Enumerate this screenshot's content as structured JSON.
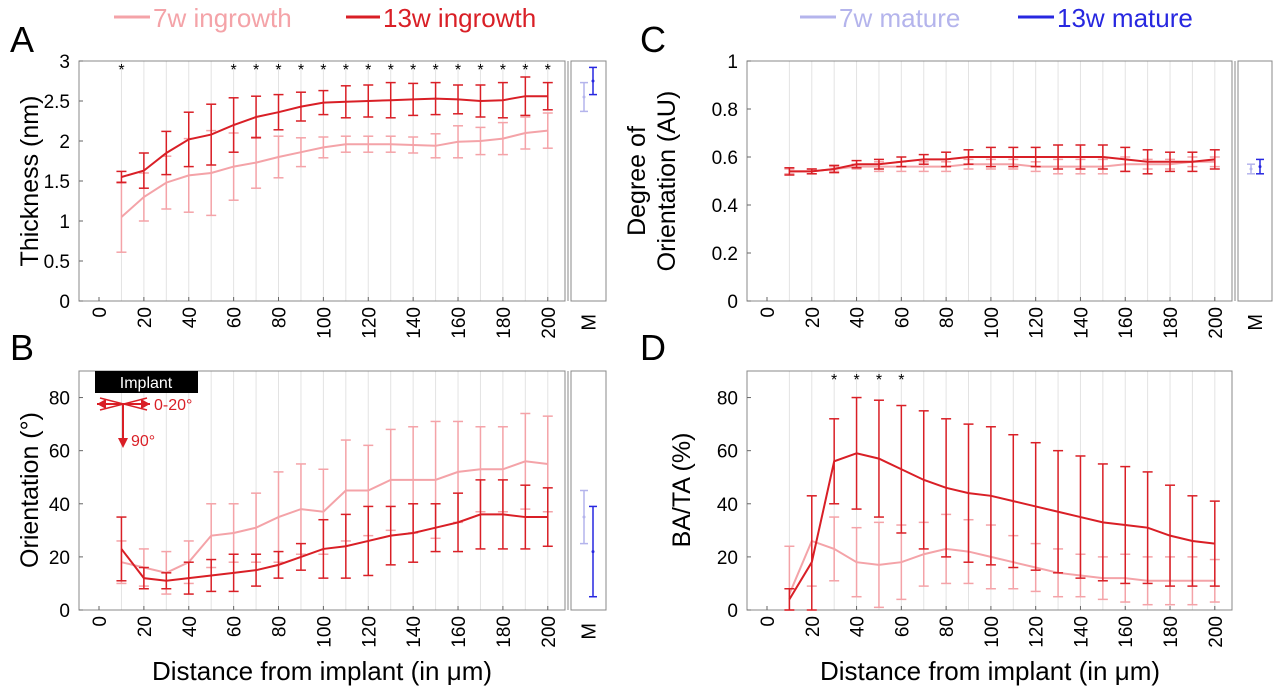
{
  "legend_left": {
    "items": [
      {
        "label": "7w ingrowth",
        "color": "#f4a3a8"
      },
      {
        "label": "13w ingrowth",
        "color": "#d91f26"
      }
    ]
  },
  "legend_right": {
    "items": [
      {
        "label": "7w mature",
        "color": "#b4b4ec"
      },
      {
        "label": "13w mature",
        "color": "#2727e0"
      }
    ]
  },
  "xlabel": "Distance from implant (in μm)",
  "colors": {
    "ingrowth7": "#f4a3a8",
    "ingrowth13": "#d91f26",
    "mature7": "#b4b4ec",
    "mature13": "#2727e0",
    "grid": "#e3e3e3",
    "star": "#000000"
  },
  "chart_data": [
    {
      "panel": "A",
      "type": "line",
      "ylabel": [
        "Thickness (nm)"
      ],
      "ylim": [
        0,
        3
      ],
      "yticks": [
        0,
        0.5,
        1,
        1.5,
        2,
        2.5,
        3
      ],
      "xticks": [
        0,
        20,
        40,
        60,
        80,
        100,
        120,
        140,
        160,
        180,
        200
      ],
      "x": [
        10,
        20,
        30,
        40,
        50,
        60,
        70,
        80,
        90,
        100,
        110,
        120,
        130,
        140,
        150,
        160,
        170,
        180,
        190,
        200
      ],
      "series": [
        {
          "name": "7w ingrowth",
          "values": [
            1.05,
            1.3,
            1.48,
            1.57,
            1.6,
            1.68,
            1.73,
            1.8,
            1.86,
            1.92,
            1.96,
            1.96,
            1.96,
            1.95,
            1.94,
            1.99,
            2.0,
            2.03,
            2.1,
            2.13
          ],
          "errors": [
            0.44,
            0.3,
            0.33,
            0.46,
            0.53,
            0.42,
            0.32,
            0.26,
            0.18,
            0.13,
            0.1,
            0.1,
            0.1,
            0.1,
            0.15,
            0.2,
            0.17,
            0.2,
            0.2,
            0.22
          ]
        },
        {
          "name": "13w ingrowth",
          "values": [
            1.55,
            1.63,
            1.85,
            2.02,
            2.08,
            2.2,
            2.3,
            2.36,
            2.43,
            2.48,
            2.49,
            2.5,
            2.51,
            2.52,
            2.53,
            2.52,
            2.5,
            2.51,
            2.56,
            2.56
          ],
          "errors": [
            0.07,
            0.22,
            0.27,
            0.34,
            0.38,
            0.34,
            0.26,
            0.22,
            0.18,
            0.15,
            0.2,
            0.2,
            0.22,
            0.2,
            0.2,
            0.18,
            0.2,
            0.22,
            0.24,
            0.17
          ]
        }
      ],
      "mature": [
        {
          "name": "7w mature",
          "value": 2.55,
          "error": 0.18
        },
        {
          "name": "13w mature",
          "value": 2.75,
          "error": 0.17
        }
      ],
      "stars_at": [
        10,
        60,
        70,
        80,
        90,
        100,
        110,
        120,
        130,
        140,
        150,
        160,
        170,
        180,
        190,
        200
      ],
      "m_label": "M"
    },
    {
      "panel": "B",
      "type": "line",
      "ylabel": [
        "Orientation (°)"
      ],
      "ylim": [
        0,
        90
      ],
      "yticks": [
        0,
        20,
        40,
        60,
        80
      ],
      "xticks": [
        0,
        20,
        40,
        60,
        80,
        100,
        120,
        140,
        160,
        180,
        200
      ],
      "x": [
        10,
        20,
        30,
        40,
        50,
        60,
        70,
        80,
        90,
        100,
        110,
        120,
        130,
        140,
        150,
        160,
        170,
        180,
        190,
        200
      ],
      "series": [
        {
          "name": "7w ingrowth",
          "values": [
            18,
            16,
            14,
            18,
            28,
            29,
            31,
            35,
            38,
            37,
            45,
            45,
            49,
            49,
            49,
            52,
            53,
            53,
            56,
            55
          ],
          "errors": [
            8,
            7,
            8,
            8,
            12,
            11,
            13,
            17,
            17,
            16,
            19,
            17,
            19,
            20,
            22,
            19,
            16,
            16,
            18,
            18
          ]
        },
        {
          "name": "13w ingrowth",
          "values": [
            23,
            12,
            11,
            12,
            13,
            14,
            15,
            17,
            20,
            23,
            24,
            26,
            28,
            29,
            31,
            33,
            36,
            36,
            35,
            35
          ],
          "errors": [
            12,
            4,
            3,
            6,
            6,
            7,
            6,
            5,
            5,
            11,
            12,
            13,
            11,
            11,
            9,
            11,
            13,
            13,
            12,
            11
          ]
        }
      ],
      "mature": [
        {
          "name": "7w mature",
          "value": 35,
          "error": 10
        },
        {
          "name": "13w mature",
          "value": 22,
          "error": 17
        }
      ],
      "stars_at": [],
      "m_label": "M",
      "inset": {
        "implant_label": "Implant",
        "range_label": "0-20°",
        "perp_label": "90°"
      }
    },
    {
      "panel": "C",
      "type": "line",
      "ylabel": [
        "Degree of",
        "Orientation (AU)"
      ],
      "ylim": [
        0,
        1
      ],
      "yticks": [
        0,
        0.2,
        0.4,
        0.6,
        0.8,
        1
      ],
      "xticks": [
        0,
        20,
        40,
        60,
        80,
        100,
        120,
        140,
        160,
        180,
        200
      ],
      "x": [
        10,
        20,
        30,
        40,
        50,
        60,
        70,
        80,
        90,
        100,
        110,
        120,
        130,
        140,
        150,
        160,
        170,
        180,
        190,
        200
      ],
      "series": [
        {
          "name": "7w mature",
          "values": [
            0.54,
            0.54,
            0.55,
            0.56,
            0.56,
            0.56,
            0.56,
            0.56,
            0.57,
            0.57,
            0.57,
            0.56,
            0.56,
            0.56,
            0.56,
            0.57,
            0.57,
            0.57,
            0.58,
            0.58
          ],
          "errors": [
            0.01,
            0.01,
            0.01,
            0.01,
            0.02,
            0.02,
            0.02,
            0.02,
            0.02,
            0.02,
            0.02,
            0.02,
            0.03,
            0.03,
            0.03,
            0.03,
            0.02,
            0.02,
            0.02,
            0.02
          ]
        },
        {
          "name": "13w mature",
          "values": [
            0.54,
            0.54,
            0.55,
            0.57,
            0.57,
            0.58,
            0.59,
            0.59,
            0.6,
            0.6,
            0.6,
            0.6,
            0.6,
            0.6,
            0.6,
            0.59,
            0.58,
            0.58,
            0.58,
            0.59
          ],
          "errors": [
            0.015,
            0.01,
            0.015,
            0.015,
            0.02,
            0.02,
            0.02,
            0.03,
            0.03,
            0.04,
            0.04,
            0.04,
            0.05,
            0.05,
            0.05,
            0.05,
            0.05,
            0.04,
            0.04,
            0.04
          ]
        }
      ],
      "series_colors": [
        "#f4a3a8",
        "#d91f26"
      ],
      "mature": [
        {
          "name": "7w mature",
          "value": 0.55,
          "error": 0.02
        },
        {
          "name": "13w mature",
          "value": 0.56,
          "error": 0.03
        }
      ],
      "stars_at": [],
      "m_label": "M"
    },
    {
      "panel": "D",
      "type": "line",
      "ylabel": [
        "BA/TA (%)"
      ],
      "ylim": [
        0,
        90
      ],
      "yticks": [
        0,
        20,
        40,
        60,
        80
      ],
      "xticks": [
        0,
        20,
        40,
        60,
        80,
        100,
        120,
        140,
        160,
        180,
        200
      ],
      "x": [
        10,
        20,
        30,
        40,
        50,
        60,
        70,
        80,
        90,
        100,
        110,
        120,
        130,
        140,
        150,
        160,
        170,
        180,
        190,
        200
      ],
      "series": [
        {
          "name": "7w ingrowth",
          "values": [
            6,
            26,
            23,
            18,
            17,
            18,
            21,
            23,
            22,
            20,
            18,
            16,
            14,
            13,
            12,
            12,
            11,
            11,
            11,
            11
          ],
          "errors": [
            18,
            17,
            12,
            13,
            16,
            14,
            12,
            13,
            12,
            12,
            10,
            9,
            9,
            8,
            8,
            9,
            9,
            9,
            9,
            8
          ]
        },
        {
          "name": "13w ingrowth",
          "values": [
            4,
            18,
            56,
            59,
            57,
            53,
            49,
            46,
            44,
            43,
            41,
            39,
            37,
            35,
            33,
            32,
            31,
            28,
            26,
            25
          ],
          "errors": [
            4,
            25,
            16,
            21,
            22,
            24,
            26,
            26,
            26,
            26,
            25,
            24,
            23,
            23,
            22,
            22,
            21,
            19,
            17,
            16
          ]
        }
      ],
      "mature": [],
      "stars_at": [
        30,
        40,
        50,
        60
      ],
      "m_label": ""
    }
  ]
}
